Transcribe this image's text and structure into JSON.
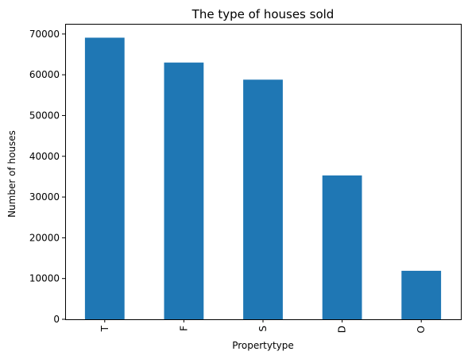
{
  "chart_data": {
    "type": "bar",
    "title": "The type of houses sold",
    "xlabel": "Propertytype",
    "ylabel": "Number of houses",
    "categories": [
      "T",
      "F",
      "S",
      "D",
      "O"
    ],
    "values": [
      69100,
      63000,
      58800,
      35300,
      11900
    ],
    "ylim": [
      0,
      72500
    ],
    "yticks": [
      0,
      10000,
      20000,
      30000,
      40000,
      50000,
      60000,
      70000
    ],
    "ytick_labels": [
      "0",
      "10000",
      "20000",
      "30000",
      "40000",
      "50000",
      "60000",
      "70000"
    ],
    "bar_color": "#1f77b4",
    "grid": false,
    "legend": "none"
  }
}
